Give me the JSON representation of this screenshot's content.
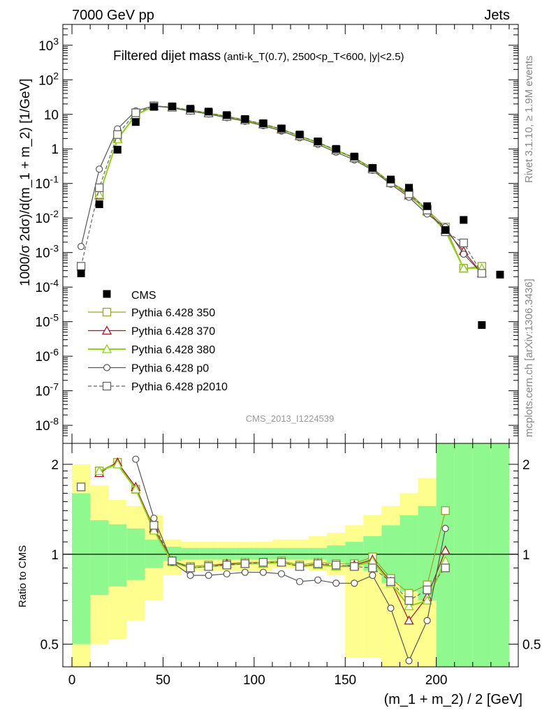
{
  "header": {
    "left": "7000 GeV pp",
    "right": "Jets"
  },
  "side_labels": {
    "rivet": "Rivet 3.1.10, ≥ 1.9M events",
    "mcplots": "mcplots.cern.ch [arXiv:1306.3436]"
  },
  "chart_data": [
    {
      "type": "line",
      "title_main": "Filtered dijet mass",
      "title_cuts": "(anti-k_T(0.7), 2500<p_T<600, |y|<2.5)",
      "watermark": "CMS_2013_I1224539",
      "xlabel": "(m_1 + m_2) / 2 [GeV]",
      "ylabel": "1000/σ 2dσ)/d(m_1 + m_2) [1/GeV]",
      "xlim": [
        -5,
        245
      ],
      "ylim": [
        3e-09,
        4000
      ],
      "yscale": "log",
      "xticks": [
        "0",
        "50",
        "100",
        "150",
        "200"
      ],
      "yticks": [
        "10^-8",
        "10^-7",
        "10^-6",
        "10^-5",
        "10^-4",
        "10^-3",
        "10^-2",
        "10^-1",
        "1",
        "10",
        "10^2",
        "10^3"
      ],
      "legend_position": "bottom-left",
      "data": {
        "name": "CMS",
        "x": [
          5,
          15,
          25,
          35,
          45,
          55,
          65,
          75,
          85,
          95,
          105,
          115,
          125,
          135,
          145,
          155,
          165,
          175,
          185,
          195,
          205,
          215,
          225,
          235
        ],
        "y": [
          0.00025,
          0.025,
          0.95,
          6.0,
          16.5,
          17.0,
          14.5,
          12.0,
          9.5,
          7.3,
          5.5,
          3.9,
          2.6,
          1.65,
          1.0,
          0.6,
          0.28,
          0.13,
          0.075,
          0.022,
          0.0045,
          0.0088,
          8e-06,
          0.00023
        ]
      },
      "series": [
        {
          "name": "Pythia 6.428 350",
          "color": "#9aa22c",
          "style": "solid",
          "marker": "square",
          "y": [
            null,
            0.045,
            1.95,
            9.8,
            17.5,
            16.2,
            13.3,
            11.0,
            8.8,
            6.9,
            5.3,
            3.75,
            2.4,
            1.55,
            0.93,
            0.56,
            0.275,
            0.108,
            0.055,
            0.0175,
            0.0055,
            0.00035,
            0.0004,
            null
          ]
        },
        {
          "name": "Pythia 6.428 370",
          "color": "#a3171e",
          "style": "solid",
          "marker": "triangle",
          "y": [
            null,
            0.046,
            1.92,
            9.6,
            17.3,
            16.0,
            13.1,
            10.8,
            8.7,
            6.8,
            5.2,
            3.7,
            2.37,
            1.52,
            0.91,
            0.55,
            0.27,
            0.105,
            0.045,
            0.016,
            0.0046,
            0.0011,
            0.00025,
            null
          ]
        },
        {
          "name": "Pythia 6.428 380",
          "color": "#8fd21a",
          "style": "solid",
          "marker": "triangle",
          "y": [
            null,
            0.047,
            1.9,
            9.5,
            17.2,
            15.9,
            13.0,
            10.7,
            8.6,
            6.7,
            5.1,
            3.65,
            2.33,
            1.5,
            0.9,
            0.54,
            0.265,
            0.103,
            0.05,
            0.015,
            0.0043,
            0.00035,
            0.00035,
            null
          ]
        },
        {
          "name": "Pythia 6.428 p0",
          "color": "#555555",
          "style": "solid",
          "marker": "circle",
          "y": [
            0.0015,
            0.26,
            3.8,
            12.6,
            17.6,
            15.4,
            12.3,
            10.2,
            8.0,
            6.3,
            4.7,
            3.3,
            2.1,
            1.35,
            0.8,
            0.48,
            0.24,
            0.095,
            0.04,
            0.013,
            0.0055,
            0.0009,
            0.00025,
            null
          ]
        },
        {
          "name": "Pythia 6.428 p2010",
          "color": "#666666",
          "style": "dashed",
          "marker": "square",
          "y": [
            0.0004,
            0.075,
            2.6,
            11.1,
            17.5,
            16.0,
            13.1,
            10.9,
            8.7,
            6.9,
            5.2,
            3.7,
            2.4,
            1.55,
            0.93,
            0.55,
            0.26,
            0.105,
            0.05,
            0.017,
            0.004,
            0.0019,
            0.00025,
            null
          ]
        }
      ]
    },
    {
      "type": "line",
      "ylabel": "Ratio to CMS",
      "xlim": [
        -5,
        245
      ],
      "ylim": [
        0.42,
        2.35
      ],
      "yscale": "log",
      "yticks": [
        "0.5",
        "1",
        "2"
      ],
      "reference_line": 1,
      "band_inner_color": "#8ff990",
      "band_outer_color": "#fefe8e",
      "bands": {
        "x_edges": [
          0,
          10,
          20,
          30,
          40,
          50,
          60,
          70,
          80,
          90,
          100,
          110,
          120,
          130,
          140,
          150,
          160,
          170,
          180,
          190,
          200,
          210,
          220,
          230,
          240
        ],
        "inner": [
          [
            0.5,
            1.6
          ],
          [
            0.73,
            1.3
          ],
          [
            0.78,
            1.26
          ],
          [
            0.82,
            1.22
          ],
          [
            0.9,
            1.12
          ],
          [
            0.95,
            1.06
          ],
          [
            0.96,
            1.05
          ],
          [
            0.96,
            1.05
          ],
          [
            0.96,
            1.05
          ],
          [
            0.96,
            1.05
          ],
          [
            0.96,
            1.05
          ],
          [
            0.96,
            1.05
          ],
          [
            0.96,
            1.05
          ],
          [
            0.96,
            1.05
          ],
          [
            0.94,
            1.07
          ],
          [
            0.92,
            1.1
          ],
          [
            0.88,
            1.15
          ],
          [
            0.8,
            1.25
          ],
          [
            0.75,
            1.35
          ],
          [
            0.7,
            1.45
          ],
          [
            0.4,
            2.5
          ],
          [
            0.4,
            2.5
          ],
          [
            0.4,
            2.5
          ],
          [
            0.4,
            2.5
          ]
        ],
        "outer": [
          [
            0.4,
            2.0
          ],
          [
            0.5,
            1.7
          ],
          [
            0.52,
            1.52
          ],
          [
            0.6,
            1.45
          ],
          [
            0.7,
            1.35
          ],
          [
            0.85,
            1.12
          ],
          [
            0.88,
            1.1
          ],
          [
            0.88,
            1.1
          ],
          [
            0.88,
            1.1
          ],
          [
            0.88,
            1.1
          ],
          [
            0.88,
            1.1
          ],
          [
            0.9,
            1.12
          ],
          [
            0.9,
            1.12
          ],
          [
            0.88,
            1.15
          ],
          [
            0.85,
            1.18
          ],
          [
            0.45,
            1.25
          ],
          [
            0.45,
            1.35
          ],
          [
            0.4,
            1.45
          ],
          [
            0.4,
            1.6
          ],
          [
            0.4,
            1.8
          ],
          [
            0.4,
            2.5
          ],
          [
            0.4,
            2.5
          ],
          [
            0.4,
            2.5
          ],
          [
            0.4,
            2.5
          ]
        ]
      },
      "x": [
        5,
        15,
        25,
        35,
        45,
        55,
        65,
        75,
        85,
        95,
        105,
        115,
        125,
        135,
        145,
        155,
        165,
        175,
        185,
        195,
        205,
        215
      ],
      "series": [
        {
          "name": "Pythia 6.428 350",
          "color": "#9aa22c",
          "style": "solid",
          "marker": "square",
          "y": [
            null,
            1.9,
            2.03,
            1.65,
            1.21,
            0.95,
            0.91,
            0.92,
            0.93,
            0.94,
            0.94,
            0.95,
            0.92,
            0.94,
            0.93,
            0.93,
            0.98,
            0.83,
            0.74,
            0.79,
            1.4,
            null
          ]
        },
        {
          "name": "Pythia 6.428 370",
          "color": "#a3171e",
          "style": "solid",
          "marker": "triangle",
          "y": [
            null,
            1.87,
            2.03,
            1.68,
            1.22,
            0.95,
            0.9,
            0.91,
            0.93,
            0.93,
            0.93,
            0.94,
            0.91,
            0.93,
            0.91,
            0.92,
            0.96,
            0.81,
            0.6,
            0.72,
            1.03,
            null
          ]
        },
        {
          "name": "Pythia 6.428 380",
          "color": "#8fd21a",
          "style": "solid",
          "marker": "triangle",
          "y": [
            null,
            1.9,
            2.0,
            1.65,
            1.2,
            0.94,
            0.9,
            0.91,
            0.92,
            0.93,
            0.93,
            0.94,
            0.91,
            0.92,
            0.91,
            0.91,
            0.95,
            0.8,
            0.67,
            0.7,
            0.95,
            null
          ]
        },
        {
          "name": "Pythia 6.428 p0",
          "color": "#555555",
          "style": "solid",
          "marker": "circle",
          "y": [
            null,
            null,
            null,
            2.08,
            1.32,
            0.94,
            0.85,
            0.85,
            0.86,
            0.87,
            0.87,
            0.86,
            0.81,
            0.82,
            0.8,
            0.8,
            0.85,
            0.66,
            0.44,
            0.6,
            1.22,
            null
          ]
        },
        {
          "name": "Pythia 6.428 p2010",
          "color": "#666666",
          "style": "dashed",
          "marker": "square",
          "y": [
            1.68,
            null,
            null,
            null,
            1.25,
            0.95,
            0.9,
            0.91,
            0.92,
            0.93,
            0.94,
            0.94,
            0.91,
            0.93,
            0.92,
            0.91,
            0.9,
            0.81,
            0.7,
            0.76,
            0.9,
            null
          ]
        }
      ]
    }
  ]
}
